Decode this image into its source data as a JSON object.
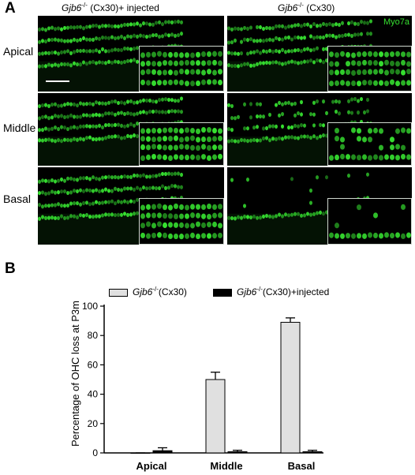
{
  "panel_a": {
    "letter": "A",
    "columns": [
      {
        "gene": "Gjb6",
        "superscript": "-/-",
        "suffix": " (Cx30)+ injected"
      },
      {
        "gene": "Gjb6",
        "superscript": "-/-",
        "suffix": " (Cx30)"
      }
    ],
    "rows": [
      "Apical",
      "Middle",
      "Basal"
    ],
    "stain_label": "Myo7a",
    "stain_color": "#36e030"
  },
  "panel_b": {
    "letter": "B",
    "legend_symbols": {
      "series_1": {
        "gene": "Gjb6",
        "superscript": "-/-",
        "suffix": "(Cx30)"
      },
      "series_2": {
        "gene": "Gjb6",
        "superscript": "-/-",
        "suffix": "(Cx30)+injected"
      }
    }
  },
  "chart_data": {
    "type": "bar",
    "ylabel": "Percentage of OHC loss at P3m",
    "xlabel": "",
    "ylim": [
      0,
      100
    ],
    "yticks": [
      0,
      20,
      40,
      60,
      80,
      100
    ],
    "categories": [
      "Apical",
      "Middle",
      "Basal"
    ],
    "series": [
      {
        "name": "Gjb6-/-(Cx30)",
        "values": [
          0,
          50,
          89
        ],
        "errors": [
          0,
          5,
          3
        ],
        "color": "#e0e0e0"
      },
      {
        "name": "Gjb6-/-(Cx30)+injected",
        "values": [
          1.5,
          0.8,
          0.8
        ],
        "errors": [
          2,
          1,
          1
        ],
        "color": "#000000"
      }
    ],
    "grid": false,
    "legend_position": "top"
  }
}
